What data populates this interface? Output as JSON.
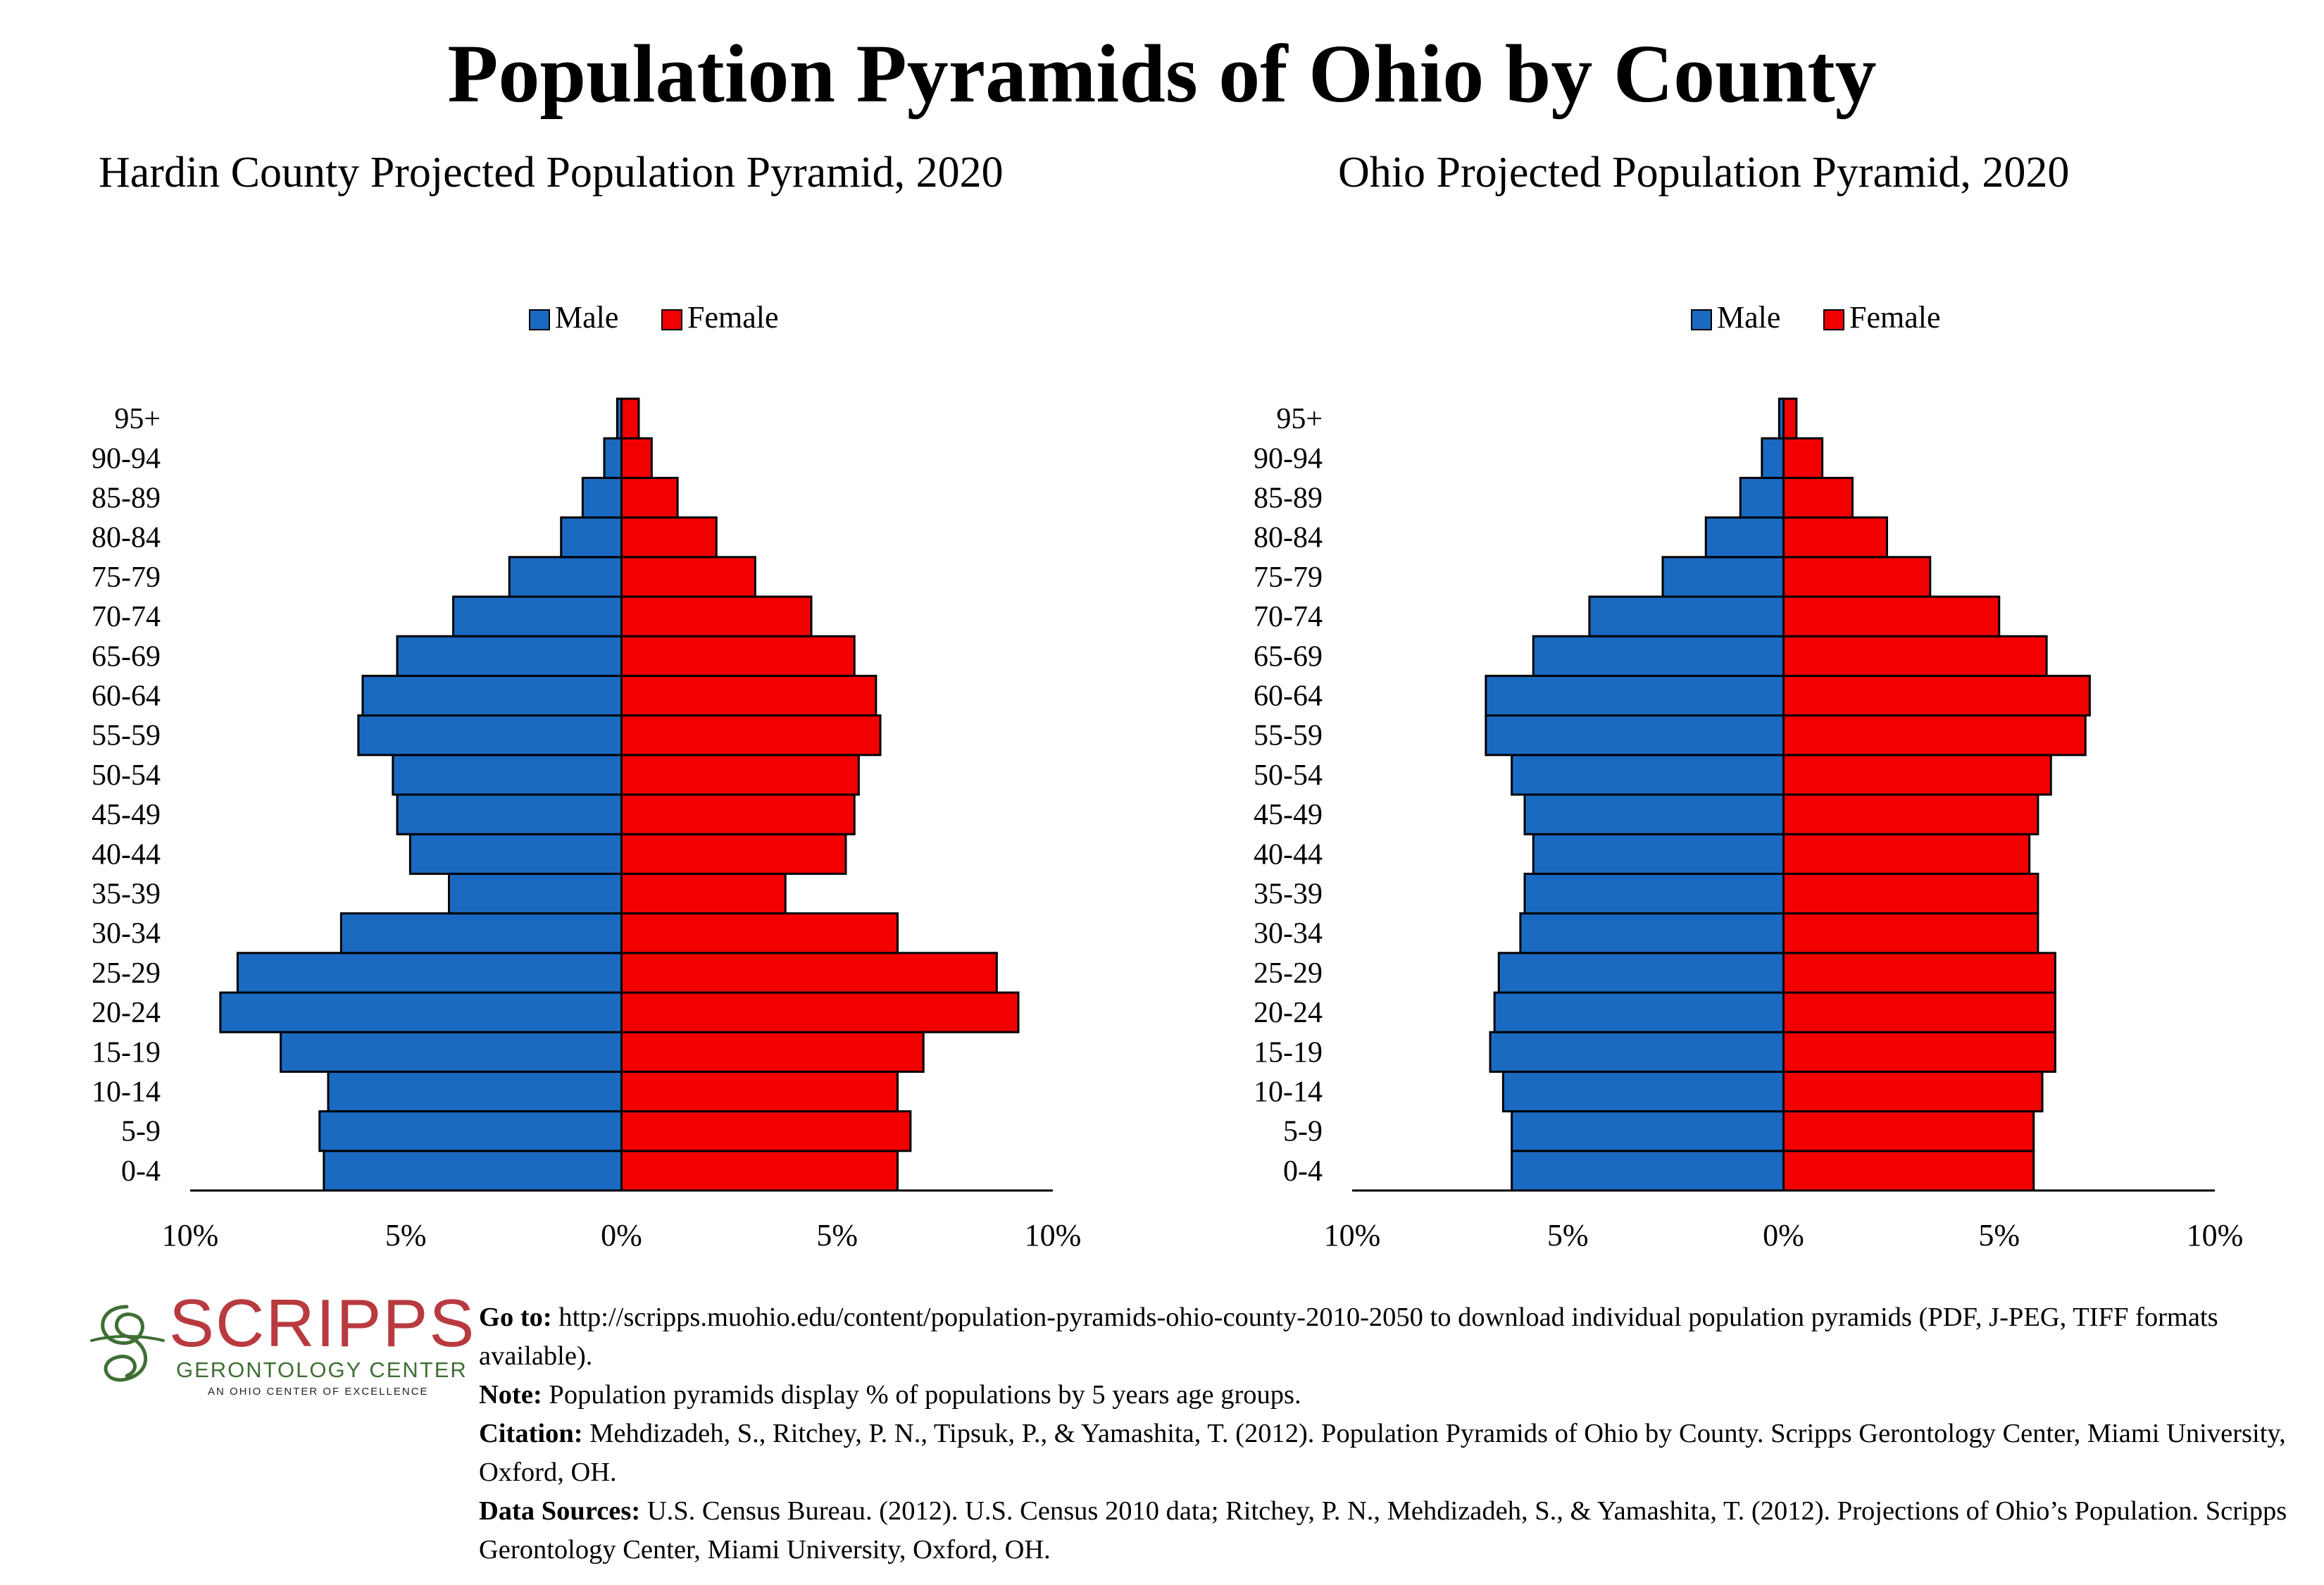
{
  "title": "Population Pyramids of Ohio by County",
  "colors": {
    "male": "#1a6ac2",
    "female": "#f20000",
    "outline": "#000000"
  },
  "chart_data": [
    {
      "type": "bar",
      "orientation": "horizontal",
      "title": "Hardin County Projected Population Pyramid, 2020",
      "legend": "top-center",
      "categories": [
        "0-4",
        "5-9",
        "10-14",
        "15-19",
        "20-24",
        "25-29",
        "30-34",
        "35-39",
        "40-44",
        "45-49",
        "50-54",
        "55-59",
        "60-64",
        "65-69",
        "70-74",
        "75-79",
        "80-84",
        "85-89",
        "90-94",
        "95+"
      ],
      "series": [
        {
          "name": "Male",
          "values": [
            6.9,
            7.0,
            6.8,
            7.9,
            9.3,
            8.9,
            6.5,
            4.0,
            4.9,
            5.2,
            5.3,
            6.1,
            6.0,
            5.2,
            3.9,
            2.6,
            1.4,
            0.9,
            0.4,
            0.1
          ]
        },
        {
          "name": "Female",
          "values": [
            6.4,
            6.7,
            6.4,
            7.0,
            9.2,
            8.7,
            6.4,
            3.8,
            5.2,
            5.4,
            5.5,
            6.0,
            5.9,
            5.4,
            4.4,
            3.1,
            2.2,
            1.3,
            0.7,
            0.4
          ]
        }
      ],
      "xlim": [
        -10,
        10
      ],
      "xticks": [
        "10%",
        "5%",
        "0%",
        "5%",
        "10%"
      ]
    },
    {
      "type": "bar",
      "orientation": "horizontal",
      "title": "Ohio Projected Population Pyramid, 2020",
      "legend": "top-center",
      "categories": [
        "0-4",
        "5-9",
        "10-14",
        "15-19",
        "20-24",
        "25-29",
        "30-34",
        "35-39",
        "40-44",
        "45-49",
        "50-54",
        "55-59",
        "60-64",
        "65-69",
        "70-74",
        "75-79",
        "80-84",
        "85-89",
        "90-94",
        "95+"
      ],
      "series": [
        {
          "name": "Male",
          "values": [
            6.3,
            6.3,
            6.5,
            6.8,
            6.7,
            6.6,
            6.1,
            6.0,
            5.8,
            6.0,
            6.3,
            6.9,
            6.9,
            5.8,
            4.5,
            2.8,
            1.8,
            1.0,
            0.5,
            0.1
          ]
        },
        {
          "name": "Female",
          "values": [
            5.8,
            5.8,
            6.0,
            6.3,
            6.3,
            6.3,
            5.9,
            5.9,
            5.7,
            5.9,
            6.2,
            7.0,
            7.1,
            6.1,
            5.0,
            3.4,
            2.4,
            1.6,
            0.9,
            0.3
          ]
        }
      ],
      "xlim": [
        -10,
        10
      ],
      "xticks": [
        "10%",
        "5%",
        "0%",
        "5%",
        "10%"
      ]
    }
  ],
  "logo": {
    "word": "SCRIPPS",
    "subtitle": "GERONTOLOGY CENTER",
    "tagline": "AN OHIO CENTER OF EXCELLENCE"
  },
  "notes": {
    "goto_label": "Go to:",
    "goto_text": " http://scripps.muohio.edu/content/population-pyramids-ohio-county-2010-2050 to download individual population pyramids (PDF, J-PEG, TIFF formats available).",
    "note_label": "Note:",
    "note_text": " Population pyramids display % of populations by 5 years age groups.",
    "citation_label": "Citation:",
    "citation_text": " Mehdizadeh, S., Ritchey, P. N., Tipsuk, P., & Yamashita, T. (2012). Population Pyramids of Ohio by County. Scripps Gerontology Center, Miami University, Oxford, OH.",
    "sources_label": "Data Sources:",
    "sources_text": " U.S. Census Bureau. (2012). U.S. Census 2010 data; Ritchey, P. N., Mehdizadeh, S., & Yamashita, T. (2012). Projections of Ohio’s Population. Scripps Gerontology Center, Miami University, Oxford, OH."
  }
}
